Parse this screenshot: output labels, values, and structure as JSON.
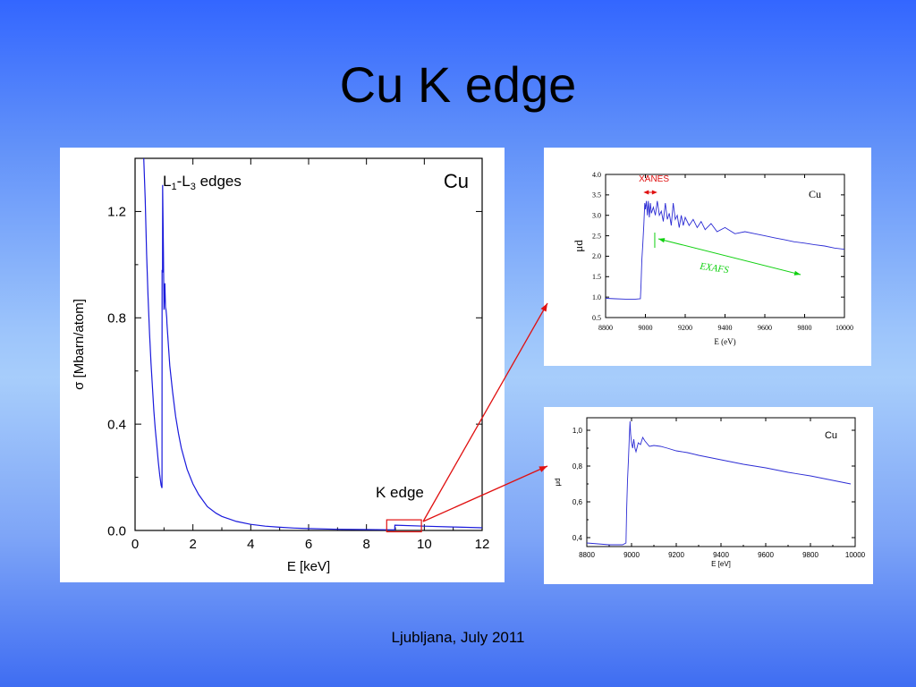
{
  "slide": {
    "title": "Cu K edge",
    "footer": "Ljubljana, July 2011"
  },
  "chart_data": [
    {
      "type": "line",
      "id": "main",
      "xlabel": "E [keV]",
      "ylabel": "σ [Mbarn/atom]",
      "xlim": [
        0,
        12
      ],
      "ylim": [
        0,
        1.4
      ],
      "xticks": [
        0,
        2,
        4,
        6,
        8,
        10,
        12
      ],
      "yticks": [
        0.0,
        0.4,
        0.8,
        1.2
      ],
      "ytick_labels": [
        "0.0",
        "0.4",
        "0.8",
        "1.2"
      ],
      "annotations": {
        "element": "Cu",
        "l_edges_main": "L",
        "l_edges_sub1": "1",
        "l_edges_dash": "-L",
        "l_edges_sub3": "3",
        "l_edges_tail": " edges",
        "k_edge": "K edge"
      },
      "series": [
        {
          "color": "#1a1adc",
          "x": [
            0.3,
            0.35,
            0.4,
            0.45,
            0.5,
            0.55,
            0.6,
            0.65,
            0.7,
            0.75,
            0.8,
            0.85,
            0.9,
            0.93,
            0.933,
            0.95,
            0.952,
            0.98,
            1.0,
            1.03,
            1.05,
            1.07,
            1.096,
            1.1,
            1.15,
            1.2,
            1.3,
            1.4,
            1.5,
            1.6,
            1.8,
            2.0,
            2.2,
            2.5,
            2.8,
            3.0,
            3.5,
            4.0,
            4.5,
            5.0,
            5.5,
            6.0,
            7.0,
            8.0,
            8.979,
            8.98,
            9.0,
            10.0,
            11.0,
            12.0
          ],
          "y": [
            1.4,
            1.25,
            1.04,
            0.88,
            0.74,
            0.63,
            0.54,
            0.45,
            0.38,
            0.32,
            0.26,
            0.21,
            0.17,
            0.16,
            0.98,
            0.97,
            1.3,
            1.05,
            0.83,
            0.93,
            0.84,
            0.83,
            0.8,
            0.78,
            0.7,
            0.62,
            0.52,
            0.43,
            0.365,
            0.31,
            0.23,
            0.175,
            0.135,
            0.09,
            0.065,
            0.053,
            0.034,
            0.023,
            0.016,
            0.012,
            0.009,
            0.007,
            0.0045,
            0.0032,
            0.0025,
            0.02,
            0.02,
            0.016,
            0.013,
            0.01
          ]
        }
      ],
      "highlight_box": {
        "x": [
          8.7,
          9.9
        ],
        "y": [
          -0.005,
          0.04
        ]
      }
    },
    {
      "type": "line",
      "id": "top-inset",
      "xlabel": "E (eV)",
      "ylabel": "μd",
      "xlim": [
        8800,
        10000
      ],
      "ylim": [
        0.5,
        4.0
      ],
      "xticks": [
        8800,
        9000,
        9200,
        9400,
        9600,
        9800,
        10000
      ],
      "yticks": [
        0.5,
        1.0,
        1.5,
        2.0,
        2.5,
        3.0,
        3.5,
        4.0
      ],
      "ytick_labels": [
        "0.5",
        "1.0",
        "1.5",
        "2.0",
        "2.5",
        "3.0",
        "3.5",
        "4.0"
      ],
      "annotations": {
        "element": "Cu",
        "xanes": "XANES",
        "exafs": "EXAFS"
      },
      "colors": {
        "curve": "#2c2cd4",
        "xanes": "#e01010",
        "exafs": "#10d010"
      },
      "series": [
        {
          "x": [
            8800,
            8850,
            8900,
            8950,
            8975,
            8978,
            8982,
            8987,
            8992,
            8997,
            9000,
            9005,
            9010,
            9015,
            9020,
            9025,
            9030,
            9040,
            9050,
            9060,
            9070,
            9080,
            9090,
            9100,
            9110,
            9120,
            9130,
            9140,
            9150,
            9160,
            9170,
            9180,
            9190,
            9200,
            9220,
            9240,
            9260,
            9280,
            9300,
            9330,
            9360,
            9400,
            9450,
            9500,
            9550,
            9600,
            9650,
            9700,
            9750,
            9800,
            9850,
            9900,
            9950,
            10000
          ],
          "y": [
            0.97,
            0.96,
            0.95,
            0.95,
            0.96,
            1.3,
            1.9,
            2.3,
            2.75,
            3.3,
            3.15,
            3.35,
            3.0,
            3.35,
            2.95,
            3.3,
            3.05,
            3.2,
            3.0,
            3.35,
            3.0,
            3.1,
            2.85,
            3.3,
            2.9,
            3.05,
            2.75,
            3.3,
            2.9,
            3.0,
            2.7,
            3.0,
            2.75,
            2.95,
            2.75,
            2.9,
            2.7,
            2.85,
            2.65,
            2.8,
            2.6,
            2.7,
            2.55,
            2.6,
            2.55,
            2.5,
            2.45,
            2.4,
            2.35,
            2.32,
            2.28,
            2.25,
            2.2,
            2.17
          ]
        }
      ],
      "xanes_range": [
        8990,
        9060
      ],
      "exafs_range": [
        9065,
        9780
      ]
    },
    {
      "type": "line",
      "id": "bottom-inset",
      "xlabel": "E [eV]",
      "ylabel": "μd",
      "xlim": [
        8800,
        10000
      ],
      "ylim": [
        0.35,
        1.07
      ],
      "xticks": [
        8800,
        9000,
        9200,
        9400,
        9600,
        9800,
        10000
      ],
      "yticks": [
        0.4,
        0.6,
        0.8,
        1.0
      ],
      "ytick_labels": [
        "0,4",
        "0,6",
        "0,8",
        "1,0"
      ],
      "annotations": {
        "element": "Cu"
      },
      "series": [
        {
          "color": "#2c2cd4",
          "x": [
            8800,
            8850,
            8900,
            8940,
            8960,
            8975,
            8978,
            8982,
            8986,
            8990,
            8993,
            8996,
            9000,
            9005,
            9010,
            9015,
            9020,
            9030,
            9040,
            9050,
            9060,
            9080,
            9100,
            9130,
            9160,
            9200,
            9250,
            9300,
            9400,
            9500,
            9600,
            9700,
            9800,
            9900,
            9980
          ],
          "y": [
            0.37,
            0.365,
            0.36,
            0.36,
            0.36,
            0.37,
            0.55,
            0.72,
            0.83,
            0.96,
            1.05,
            0.98,
            0.93,
            0.9,
            0.95,
            0.9,
            0.88,
            0.93,
            0.92,
            0.96,
            0.94,
            0.91,
            0.915,
            0.91,
            0.9,
            0.885,
            0.875,
            0.86,
            0.835,
            0.81,
            0.79,
            0.765,
            0.745,
            0.72,
            0.7
          ]
        }
      ]
    }
  ]
}
